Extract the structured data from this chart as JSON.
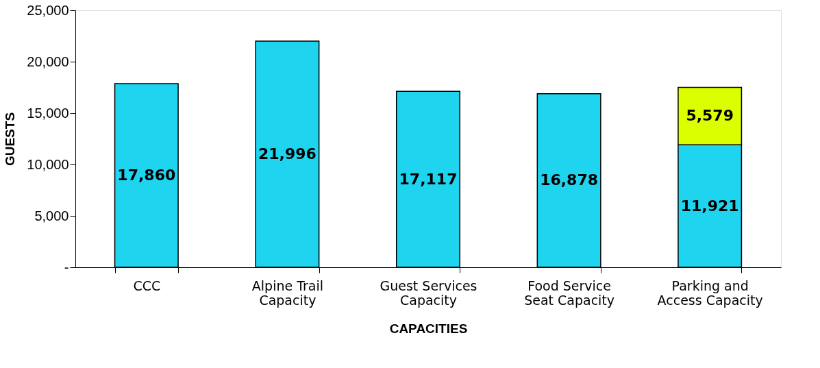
{
  "chart_data": {
    "type": "bar",
    "stacked": true,
    "xlabel": "CAPACITIES",
    "ylabel": "GUESTS",
    "categories": [
      "CCC",
      "Alpine Trail Capacity",
      "Guest Services Capacity",
      "Food Service Seat Capacity",
      "Parking and Access Capacity"
    ],
    "series": [
      {
        "color": "#1ed4ee",
        "values": [
          17860,
          21996,
          17117,
          16878,
          11921
        ]
      },
      {
        "color": "#dcff00",
        "values": [
          null,
          null,
          null,
          null,
          5579
        ],
        "value_labels": [
          null,
          null,
          null,
          null,
          "5,579"
        ]
      }
    ],
    "ylim": [
      0,
      25000
    ],
    "yticks": [
      {
        "value": 0,
        "label": "-"
      },
      {
        "value": 5000,
        "label": "5,000"
      },
      {
        "value": 10000,
        "label": "10,000"
      },
      {
        "value": 15000,
        "label": "15,000"
      },
      {
        "value": 20000,
        "label": "20,000"
      },
      {
        "value": 25000,
        "label": "25,000"
      }
    ],
    "value_labels": [
      "17,860",
      "21,996",
      "17,117",
      "16,878",
      "11,921"
    ],
    "grid": false
  }
}
